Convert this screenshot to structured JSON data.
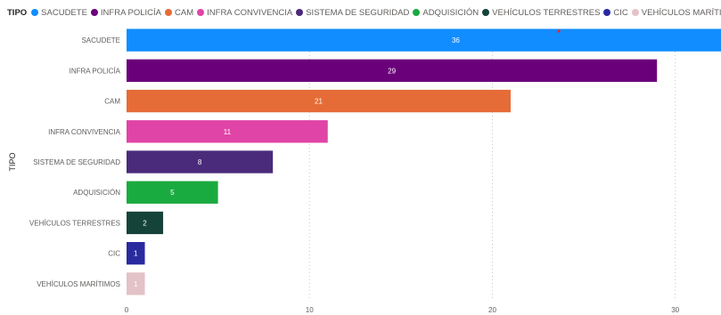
{
  "chart_data": {
    "type": "bar",
    "orientation": "horizontal",
    "legend_title": "TIPO",
    "ylabel": "TIPO",
    "categories": [
      "SACUDETE",
      "INFRA POLICÍA",
      "CAM",
      "INFRA CONVIVENCIA",
      "SISTEMA DE SEGURIDAD",
      "ADQUISICIÓN",
      "VEHÍCULOS TERRESTRES",
      "CIC",
      "VEHÍCULOS MARÍTIMOS"
    ],
    "values": [
      36,
      29,
      21,
      11,
      8,
      5,
      2,
      1,
      1
    ],
    "colors": [
      "#118dff",
      "#6b007b",
      "#e66c37",
      "#e044a7",
      "#4a2a7a",
      "#1aab40",
      "#15433a",
      "#2a2aa0",
      "#e3c2c8"
    ],
    "xticks": [
      0,
      10,
      20,
      30
    ],
    "xlim": [
      0,
      32.5
    ],
    "grid": true,
    "legend_position": "top-left"
  }
}
